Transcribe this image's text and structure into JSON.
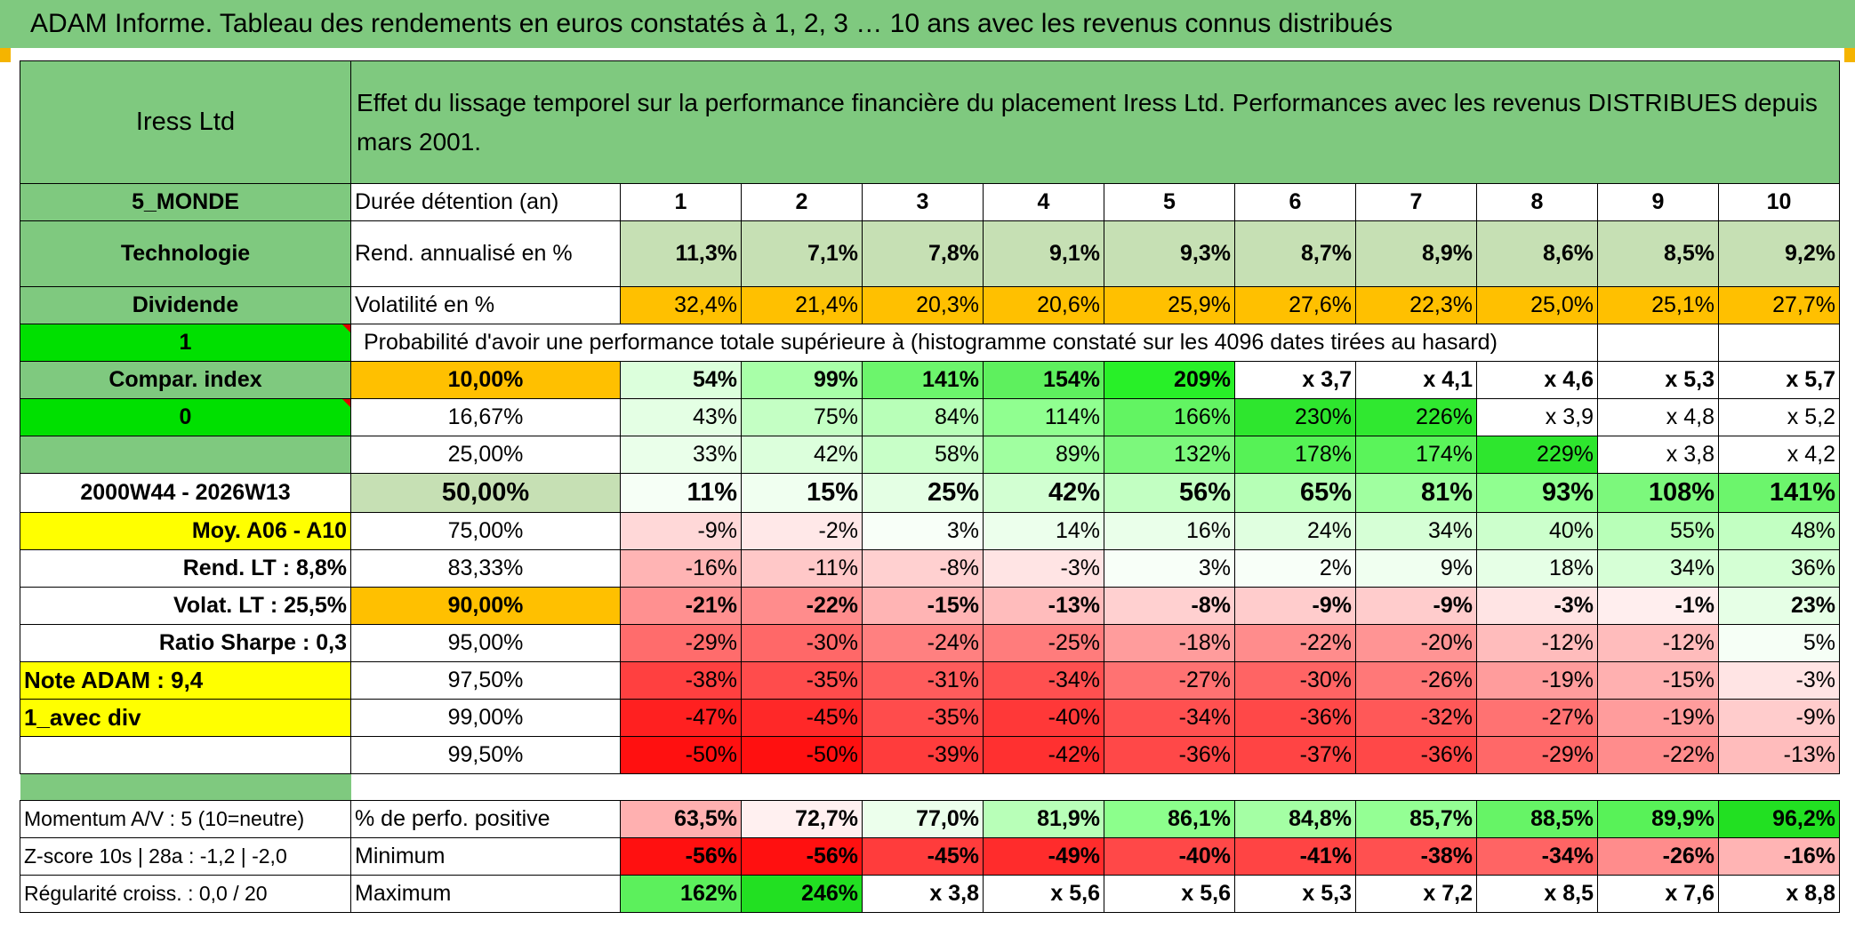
{
  "title": "ADAM Informe. Tableau des rendements en euros constatés à 1, 2, 3 … 10 ans avec les revenus connus distribués",
  "left": {
    "name": "Iress Ltd",
    "region": "5_MONDE",
    "sector": "Technologie",
    "income": "Dividende",
    "flag1": "1",
    "compar_label": "Compar. index",
    "flag0": "0",
    "period": "2000W44 - 2026W13",
    "moy_label": "Moy. A06 - A10",
    "rend_lt": "Rend. LT :   8,8%",
    "volat_lt": "Volat. LT :   25,5%",
    "sharpe": "Ratio Sharpe :   0,3",
    "note": "Note ADAM : 9,4",
    "avec_div": "1_avec div",
    "momentum": "Momentum A/V : 5 (10=neutre)",
    "zscore": "Z-score 10s | 28a : -1,2 | -2,0",
    "regularite": "Régularité croiss. : 0,0 / 20"
  },
  "header_text": "Effet du lissage temporel sur la performance financière du placement Iress Ltd. Performances avec les revenus DISTRIBUES depuis mars 2001.",
  "duree_label": "Durée détention (an)",
  "years": [
    "1",
    "2",
    "3",
    "4",
    "5",
    "6",
    "7",
    "8",
    "9",
    "10"
  ],
  "rend_label": "Rend. annualisé en %",
  "rend": [
    "11,3%",
    "7,1%",
    "7,8%",
    "9,1%",
    "9,3%",
    "8,7%",
    "8,9%",
    "8,6%",
    "8,5%",
    "9,2%"
  ],
  "vol_label": "Volatilité en %",
  "vol": [
    "32,4%",
    "21,4%",
    "20,3%",
    "20,6%",
    "25,9%",
    "27,6%",
    "22,3%",
    "25,0%",
    "25,1%",
    "27,7%"
  ],
  "proba_label": "Probabilité d'avoir une performance totale supérieure à (histogramme constaté sur les 4096 dates tirées au hasard)",
  "quantiles": [
    {
      "p": "10,00%",
      "v": [
        "54%",
        "99%",
        "141%",
        "154%",
        "209%",
        "x 3,7",
        "x 4,1",
        "x 4,6",
        "x 5,3",
        "x 5,7"
      ]
    },
    {
      "p": "16,67%",
      "v": [
        "43%",
        "75%",
        "84%",
        "114%",
        "166%",
        "230%",
        "226%",
        "x 3,9",
        "x 4,8",
        "x 5,2"
      ]
    },
    {
      "p": "25,00%",
      "v": [
        "33%",
        "42%",
        "58%",
        "89%",
        "132%",
        "178%",
        "174%",
        "229%",
        "x 3,8",
        "x 4,2"
      ]
    },
    {
      "p": "50,00%",
      "v": [
        "11%",
        "15%",
        "25%",
        "42%",
        "56%",
        "65%",
        "81%",
        "93%",
        "108%",
        "141%"
      ]
    },
    {
      "p": "75,00%",
      "v": [
        "-9%",
        "-2%",
        "3%",
        "14%",
        "16%",
        "24%",
        "34%",
        "40%",
        "55%",
        "48%"
      ]
    },
    {
      "p": "83,33%",
      "v": [
        "-16%",
        "-11%",
        "-8%",
        "-3%",
        "3%",
        "2%",
        "9%",
        "18%",
        "34%",
        "36%"
      ]
    },
    {
      "p": "90,00%",
      "v": [
        "-21%",
        "-22%",
        "-15%",
        "-13%",
        "-8%",
        "-9%",
        "-9%",
        "-3%",
        "-1%",
        "23%"
      ]
    },
    {
      "p": "95,00%",
      "v": [
        "-29%",
        "-30%",
        "-24%",
        "-25%",
        "-18%",
        "-22%",
        "-20%",
        "-12%",
        "-12%",
        "5%"
      ]
    },
    {
      "p": "97,50%",
      "v": [
        "-38%",
        "-35%",
        "-31%",
        "-34%",
        "-27%",
        "-30%",
        "-26%",
        "-19%",
        "-15%",
        "-3%"
      ]
    },
    {
      "p": "99,00%",
      "v": [
        "-47%",
        "-45%",
        "-35%",
        "-40%",
        "-34%",
        "-36%",
        "-32%",
        "-27%",
        "-19%",
        "-9%"
      ]
    },
    {
      "p": "99,50%",
      "v": [
        "-50%",
        "-50%",
        "-39%",
        "-42%",
        "-36%",
        "-37%",
        "-36%",
        "-29%",
        "-22%",
        "-13%"
      ]
    }
  ],
  "positive_label": "% de perfo. positive",
  "positive": [
    "63,5%",
    "72,7%",
    "77,0%",
    "81,9%",
    "86,1%",
    "84,8%",
    "85,7%",
    "88,5%",
    "89,9%",
    "96,2%"
  ],
  "min_label": "Minimum",
  "minimum": [
    "-56%",
    "-56%",
    "-45%",
    "-49%",
    "-40%",
    "-41%",
    "-38%",
    "-34%",
    "-26%",
    "-16%"
  ],
  "max_label": "Maximum",
  "maximum": [
    "162%",
    "246%",
    "x 3,8",
    "x 5,6",
    "x 5,6",
    "x 5,3",
    "x 7,2",
    "x 8,5",
    "x 7,6",
    "x 8,8"
  ],
  "colors": {
    "title_bg": "#7fc97f",
    "header_green": "#7fc97f",
    "light_green": "#c6e0b4",
    "bright_green": "#00e000",
    "orange": "#ffc000",
    "yellow": "#ffff00",
    "red_text": "#e00000"
  },
  "cell_colors": {
    "quantiles": [
      [
        "#dcffdc",
        "#a8ffa8",
        "#6cf56c",
        "#5ef05e",
        "#28f028",
        "#ffffff",
        "#ffffff",
        "#ffffff",
        "#ffffff",
        "#ffffff"
      ],
      [
        "#e4ffe4",
        "#c4ffc4",
        "#b8ffb8",
        "#90ff90",
        "#62f462",
        "#2ee62e",
        "#30e830",
        "#ffffff",
        "#ffffff",
        "#ffffff"
      ],
      [
        "#eaffea",
        "#dcffdc",
        "#c8ffc8",
        "#a0ffa0",
        "#7cf87c",
        "#56f256",
        "#5af45a",
        "#2ee62e",
        "#ffffff",
        "#ffffff"
      ],
      [
        "#f6fff6",
        "#f0fff0",
        "#e4ffe4",
        "#d2ffd2",
        "#c2ffc2",
        "#b6ffb6",
        "#a0ffa0",
        "#90ff90",
        "#7cf87c",
        "#6cf56c"
      ],
      [
        "#ffd8d8",
        "#ffe8e8",
        "#f8fff8",
        "#ecffec",
        "#eaffea",
        "#e0ffe0",
        "#d6ffd6",
        "#ccffcc",
        "#b8ffb8",
        "#c2ffc2"
      ],
      [
        "#ffb4b4",
        "#ffc8c8",
        "#ffd0d0",
        "#ffe4e4",
        "#f8fff8",
        "#f8fff8",
        "#f0fff0",
        "#e6ffe6",
        "#d6ffd6",
        "#d4ffd4"
      ],
      [
        "#ff9090",
        "#ff8c8c",
        "#ffb4b4",
        "#ffbcbc",
        "#ffd0d0",
        "#ffcccc",
        "#ffcccc",
        "#ffe4e4",
        "#ffeeee",
        "#e6ffe6"
      ],
      [
        "#ff6c6c",
        "#ff6868",
        "#ff8080",
        "#ff7c7c",
        "#ff9c9c",
        "#ff8c8c",
        "#ff9494",
        "#ffbcbc",
        "#ffbcbc",
        "#f6fff6"
      ],
      [
        "#ff4040",
        "#ff4c4c",
        "#ff5c5c",
        "#ff5050",
        "#ff7272",
        "#ff6464",
        "#ff7878",
        "#ff9c9c",
        "#ffb0b0",
        "#ffe4e4"
      ],
      [
        "#ff2020",
        "#ff2828",
        "#ff4c4c",
        "#ff3838",
        "#ff5050",
        "#ff4848",
        "#ff5858",
        "#ff7272",
        "#ff9c9c",
        "#ffcccc"
      ],
      [
        "#ff1010",
        "#ff1010",
        "#ff3c3c",
        "#ff3030",
        "#ff4848",
        "#ff4444",
        "#ff4848",
        "#ff6868",
        "#ff8c8c",
        "#ffbcbc"
      ]
    ],
    "positive": [
      "#ffb0b0",
      "#fff0f0",
      "#ecffec",
      "#b8ffb8",
      "#8cff8c",
      "#a4ffa4",
      "#94ff94",
      "#66f466",
      "#58f258",
      "#22e022"
    ],
    "minimum": [
      "#ff1010",
      "#ff1010",
      "#ff3c3c",
      "#ff2c2c",
      "#ff4848",
      "#ff4444",
      "#ff5050",
      "#ff6464",
      "#ff8c8c",
      "#ffb4b4"
    ],
    "maximum": [
      "#5cf05c",
      "#22e022",
      "#ffffff",
      "#ffffff",
      "#ffffff",
      "#ffffff",
      "#ffffff",
      "#ffffff",
      "#ffffff",
      "#ffffff"
    ]
  }
}
